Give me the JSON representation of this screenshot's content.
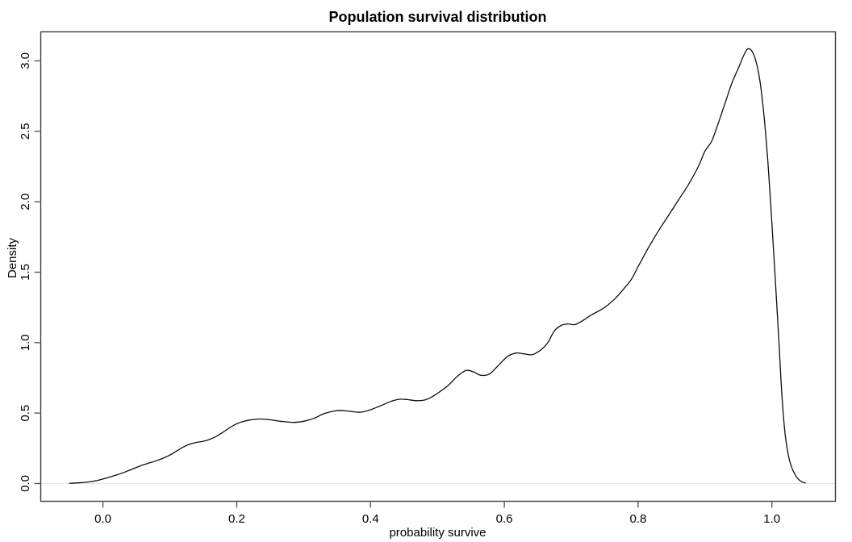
{
  "chart_data": {
    "type": "line",
    "subtype": "kernel-density",
    "title": "Population survival distribution",
    "xlabel": "probability survive",
    "ylabel": "Density",
    "xlim": [
      -0.093,
      1.095
    ],
    "ylim": [
      -0.126,
      3.206
    ],
    "grid": false,
    "legend": null,
    "x_ticks": {
      "values": [
        0.0,
        0.2,
        0.4,
        0.6,
        0.8,
        1.0
      ],
      "labels": [
        "0.0",
        "0.2",
        "0.4",
        "0.6",
        "0.8",
        "1.0"
      ]
    },
    "y_ticks": {
      "values": [
        0.0,
        0.5,
        1.0,
        1.5,
        2.0,
        2.5,
        3.0
      ],
      "labels": [
        "0.0",
        "0.5",
        "1.0",
        "1.5",
        "2.0",
        "2.5",
        "3.0"
      ]
    },
    "peak": {
      "x": 0.964,
      "density": 3.085
    },
    "series": [
      {
        "name": "density",
        "points": [
          [
            -0.05,
            0.002
          ],
          [
            -0.04,
            0.004
          ],
          [
            -0.03,
            0.007
          ],
          [
            -0.02,
            0.012
          ],
          [
            -0.01,
            0.02
          ],
          [
            0.0,
            0.032
          ],
          [
            0.01,
            0.046
          ],
          [
            0.02,
            0.06
          ],
          [
            0.03,
            0.076
          ],
          [
            0.04,
            0.095
          ],
          [
            0.05,
            0.114
          ],
          [
            0.06,
            0.132
          ],
          [
            0.07,
            0.147
          ],
          [
            0.08,
            0.162
          ],
          [
            0.09,
            0.18
          ],
          [
            0.1,
            0.202
          ],
          [
            0.11,
            0.23
          ],
          [
            0.12,
            0.259
          ],
          [
            0.13,
            0.28
          ],
          [
            0.14,
            0.292
          ],
          [
            0.15,
            0.3
          ],
          [
            0.16,
            0.314
          ],
          [
            0.17,
            0.336
          ],
          [
            0.18,
            0.366
          ],
          [
            0.19,
            0.398
          ],
          [
            0.2,
            0.424
          ],
          [
            0.21,
            0.441
          ],
          [
            0.22,
            0.451
          ],
          [
            0.235,
            0.458
          ],
          [
            0.25,
            0.452
          ],
          [
            0.265,
            0.442
          ],
          [
            0.285,
            0.434
          ],
          [
            0.3,
            0.442
          ],
          [
            0.315,
            0.462
          ],
          [
            0.33,
            0.495
          ],
          [
            0.345,
            0.514
          ],
          [
            0.355,
            0.519
          ],
          [
            0.37,
            0.512
          ],
          [
            0.385,
            0.506
          ],
          [
            0.4,
            0.524
          ],
          [
            0.415,
            0.552
          ],
          [
            0.43,
            0.582
          ],
          [
            0.443,
            0.598
          ],
          [
            0.455,
            0.596
          ],
          [
            0.468,
            0.588
          ],
          [
            0.48,
            0.592
          ],
          [
            0.49,
            0.61
          ],
          [
            0.5,
            0.64
          ],
          [
            0.515,
            0.692
          ],
          [
            0.53,
            0.762
          ],
          [
            0.543,
            0.803
          ],
          [
            0.555,
            0.79
          ],
          [
            0.565,
            0.768
          ],
          [
            0.578,
            0.778
          ],
          [
            0.59,
            0.833
          ],
          [
            0.605,
            0.903
          ],
          [
            0.618,
            0.926
          ],
          [
            0.63,
            0.92
          ],
          [
            0.642,
            0.915
          ],
          [
            0.655,
            0.95
          ],
          [
            0.665,
            1.0
          ],
          [
            0.675,
            1.085
          ],
          [
            0.685,
            1.122
          ],
          [
            0.695,
            1.133
          ],
          [
            0.705,
            1.128
          ],
          [
            0.715,
            1.15
          ],
          [
            0.73,
            1.196
          ],
          [
            0.75,
            1.25
          ],
          [
            0.765,
            1.31
          ],
          [
            0.78,
            1.39
          ],
          [
            0.79,
            1.45
          ],
          [
            0.8,
            1.54
          ],
          [
            0.815,
            1.67
          ],
          [
            0.83,
            1.79
          ],
          [
            0.845,
            1.9
          ],
          [
            0.86,
            2.01
          ],
          [
            0.875,
            2.12
          ],
          [
            0.89,
            2.25
          ],
          [
            0.9,
            2.36
          ],
          [
            0.91,
            2.43
          ],
          [
            0.92,
            2.56
          ],
          [
            0.93,
            2.7
          ],
          [
            0.94,
            2.84
          ],
          [
            0.95,
            2.95
          ],
          [
            0.958,
            3.04
          ],
          [
            0.964,
            3.085
          ],
          [
            0.97,
            3.07
          ],
          [
            0.976,
            3.0
          ],
          [
            0.982,
            2.86
          ],
          [
            0.988,
            2.62
          ],
          [
            0.994,
            2.28
          ],
          [
            1.0,
            1.85
          ],
          [
            1.005,
            1.45
          ],
          [
            1.01,
            1.05
          ],
          [
            1.015,
            0.62
          ],
          [
            1.02,
            0.34
          ],
          [
            1.025,
            0.19
          ],
          [
            1.03,
            0.11
          ],
          [
            1.035,
            0.06
          ],
          [
            1.04,
            0.028
          ],
          [
            1.045,
            0.012
          ],
          [
            1.05,
            0.004
          ]
        ]
      }
    ]
  },
  "style": {
    "background": "#ffffff",
    "box_color": "#3c3c3c",
    "tick_color": "#5a5a5a",
    "zero_line_color": "#e6e6e6",
    "curve_color": "#0d0d0d",
    "text_color": "#000000"
  }
}
